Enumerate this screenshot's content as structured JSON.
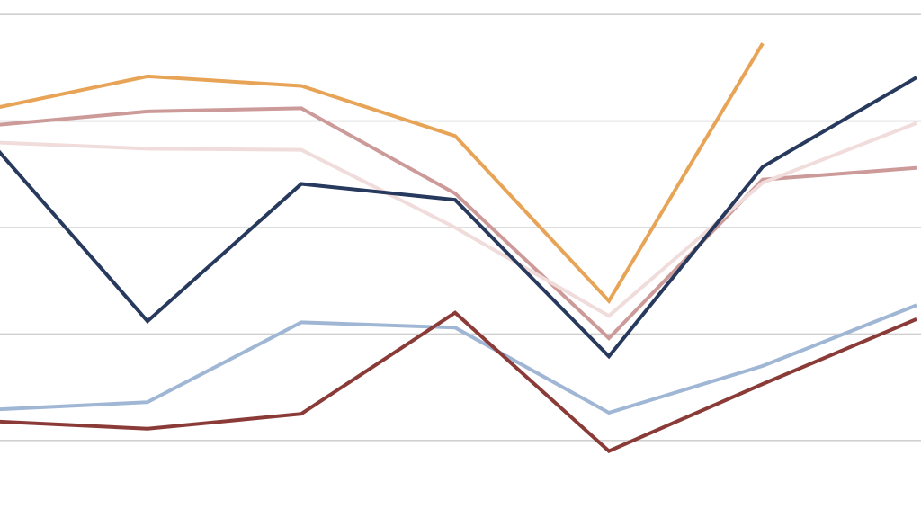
{
  "chart_data": {
    "type": "line",
    "title": "",
    "xlabel": "",
    "ylabel": "",
    "x": [
      0,
      1,
      2,
      3,
      4,
      5,
      6
    ],
    "ylim": [
      0,
      5
    ],
    "gridlines": [
      0.5,
      1.5,
      2.5,
      3.5,
      4.5
    ],
    "grid": true,
    "legend": "none",
    "series": [
      {
        "color": "#e8a456",
        "values": [
          3.62,
          3.92,
          3.83,
          3.36,
          1.81,
          4.23,
          null
        ]
      },
      {
        "color": "#cc9a99",
        "values": [
          3.46,
          3.59,
          3.62,
          2.82,
          1.46,
          2.95,
          3.06
        ]
      },
      {
        "color": "#f0dcdb",
        "values": [
          3.3,
          3.24,
          3.23,
          2.5,
          1.67,
          2.92,
          3.48
        ]
      },
      {
        "color": "#27395c",
        "values": [
          3.27,
          1.62,
          2.91,
          2.76,
          1.29,
          3.07,
          3.91
        ]
      },
      {
        "color": "#9fb6d5",
        "values": [
          0.79,
          0.86,
          1.61,
          1.56,
          0.76,
          1.2,
          1.77
        ]
      },
      {
        "color": "#8a3b37",
        "values": [
          0.68,
          0.61,
          0.75,
          1.7,
          0.4,
          1.03,
          1.64
        ]
      }
    ]
  }
}
